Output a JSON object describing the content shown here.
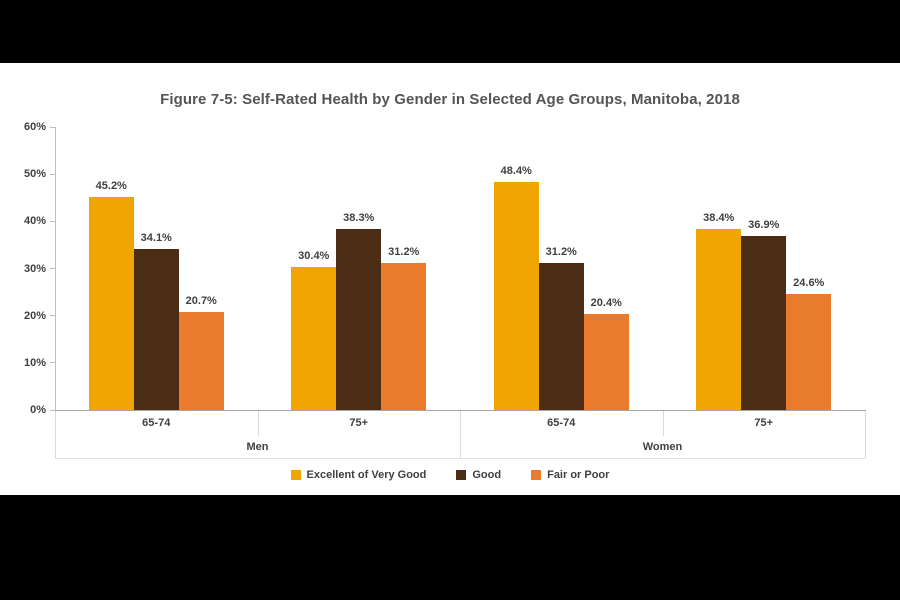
{
  "page": {
    "background_color": "#000000",
    "canvas_background_color": "#ffffff"
  },
  "title": "Figure 7-5: Self-Rated Health by Gender in Selected Age Groups, Manitoba, 2018",
  "chart_data": {
    "type": "bar",
    "title": "Figure 7-5: Self-Rated Health by Gender in Selected Age Groups, Manitoba, 2018",
    "xlabel": "",
    "ylabel": "",
    "ylim": [
      0,
      60
    ],
    "ytick_step": 10,
    "grid": false,
    "data_labels": true,
    "legend_position": "bottom",
    "categories_age": [
      "65-74",
      "75+",
      "65-74",
      "75+"
    ],
    "categories_gender": [
      "Men",
      "Women"
    ],
    "series": [
      {
        "name": "Excellent of Very Good",
        "color": "#F0A500",
        "values": [
          45.2,
          30.4,
          48.4,
          38.4
        ]
      },
      {
        "name": "Good",
        "color": "#4B2D16",
        "values": [
          34.1,
          38.3,
          31.2,
          36.9
        ]
      },
      {
        "name": "Fair or Poor",
        "color": "#EB7B2C",
        "values": [
          20.7,
          31.2,
          20.4,
          24.6
        ]
      }
    ],
    "groups": [
      {
        "gender": "Men",
        "age": "65-74",
        "values": {
          "excellent_or_very_good": 45.2,
          "good": 34.1,
          "fair_or_poor": 20.7
        }
      },
      {
        "gender": "Men",
        "age": "75+",
        "values": {
          "excellent_or_very_good": 30.4,
          "good": 38.3,
          "fair_or_poor": 31.2
        }
      },
      {
        "gender": "Women",
        "age": "65-74",
        "values": {
          "excellent_or_very_good": 48.4,
          "good": 31.2,
          "fair_or_poor": 20.4
        }
      },
      {
        "gender": "Women",
        "age": "75+",
        "values": {
          "excellent_or_very_good": 38.4,
          "good": 36.9,
          "fair_or_poor": 24.6
        }
      }
    ]
  },
  "yaxis": {
    "ticks": [
      "60%",
      "50%",
      "40%",
      "30%",
      "20%",
      "10%",
      "0%"
    ]
  },
  "legend": {
    "items": [
      {
        "label": "Excellent of Very Good",
        "color": "#F0A500"
      },
      {
        "label": "Good",
        "color": "#4B2D16"
      },
      {
        "label": "Fair or Poor",
        "color": "#EB7B2C"
      }
    ]
  },
  "colors": {
    "title_text": "#555555",
    "axis_text": "#404040",
    "data_label_text": "#3f3f3f",
    "axis_line": "#a6a6a6",
    "tick_line": "#bfbfbf",
    "category_separator": "#d9d9d9"
  }
}
